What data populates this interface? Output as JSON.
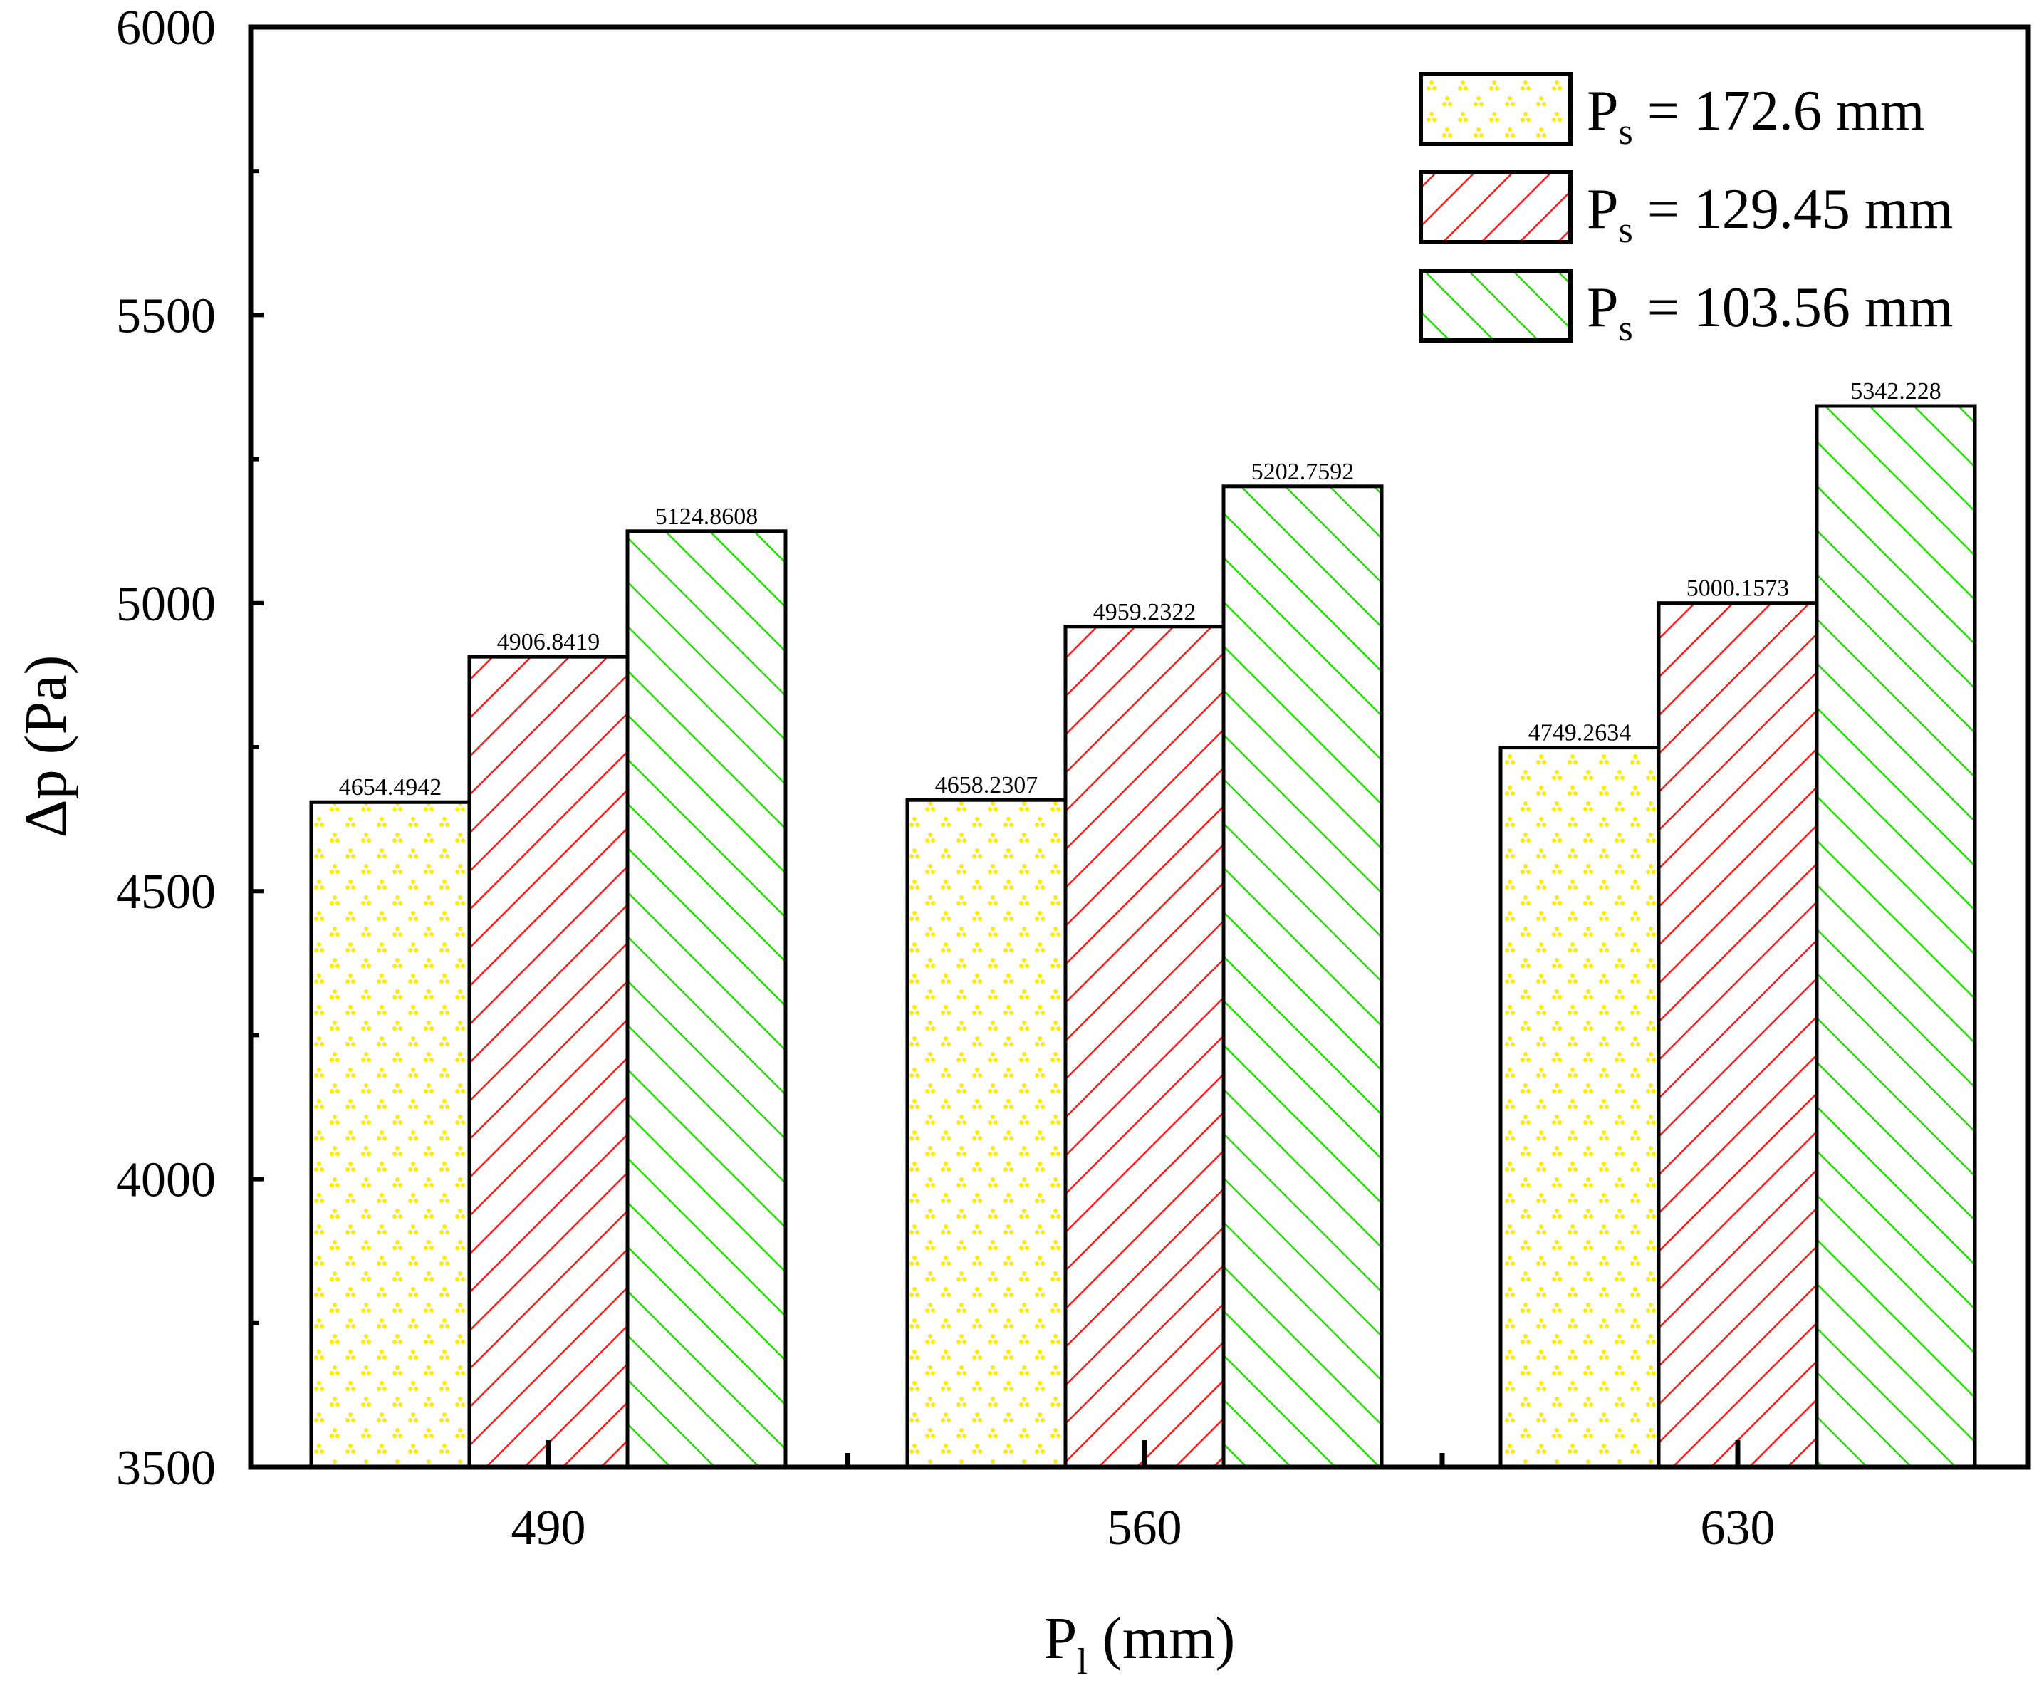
{
  "chart_data": {
    "type": "bar",
    "categories": [
      "490",
      "560",
      "630"
    ],
    "series": [
      {
        "name": "Ps = 172.6 mm",
        "label_main": "P",
        "label_sub": "s",
        "label_rest": " = 172.6 mm",
        "pattern": "dots",
        "color": "#FFEB00",
        "values": [
          4654.4942,
          4658.2307,
          4749.2634
        ],
        "value_labels": [
          "4654.4942",
          "4658.2307",
          "4749.2634"
        ]
      },
      {
        "name": "Ps = 129.45 mm",
        "label_main": "P",
        "label_sub": "s",
        "label_rest": " = 129.45 mm",
        "pattern": "hatch-forward",
        "color": "#FF1A1A",
        "values": [
          4906.8419,
          4959.2322,
          5000.1573
        ],
        "value_labels": [
          "4906.8419",
          "4959.2322",
          "5000.1573"
        ]
      },
      {
        "name": "Ps = 103.56 mm",
        "label_main": "P",
        "label_sub": "s",
        "label_rest": " = 103.56 mm",
        "pattern": "hatch-back",
        "color": "#22E000",
        "values": [
          5124.8608,
          5202.7592,
          5342.228
        ],
        "value_labels": [
          "5124.8608",
          "5202.7592",
          "5342.228"
        ]
      }
    ],
    "xlabel_main": "P",
    "xlabel_sub": "l",
    "xlabel_rest": " (mm)",
    "ylabel": "Δp (Pa)",
    "ylim": [
      3500,
      6000
    ],
    "yticks": [
      3500,
      4000,
      4500,
      5000,
      5500,
      6000
    ],
    "ytick_labels": [
      "3500",
      "4000",
      "4500",
      "5000",
      "5500",
      "6000"
    ],
    "legend_position": "top-right",
    "grid": false
  }
}
